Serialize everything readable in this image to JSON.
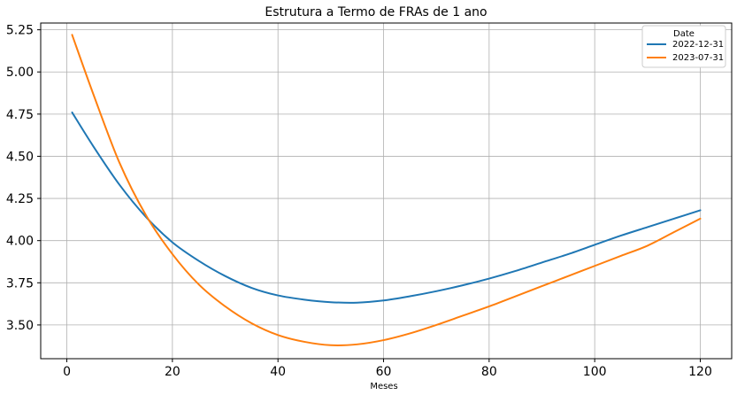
{
  "chart_data": {
    "type": "line",
    "title": "Estrutura a Termo de FRAs de 1 ano",
    "xlabel": "Meses",
    "ylabel": "",
    "xlim": [
      -4.95,
      125.95
    ],
    "ylim": [
      3.3,
      5.29
    ],
    "xticks": [
      0,
      20,
      40,
      60,
      80,
      100,
      120
    ],
    "yticks": [
      3.5,
      3.75,
      4.0,
      4.25,
      4.5,
      4.75,
      5.0,
      5.25
    ],
    "grid": true,
    "legend": {
      "title": "Date",
      "placement": "top-right"
    },
    "series": [
      {
        "name": "2022-12-31",
        "color": "#1f77b4",
        "x": [
          1,
          5,
          10,
          15,
          20,
          25,
          30,
          35,
          40,
          45,
          50,
          55,
          60,
          65,
          70,
          75,
          80,
          85,
          90,
          95,
          100,
          105,
          110,
          115,
          120
        ],
        "y": [
          4.76,
          4.56,
          4.33,
          4.14,
          3.99,
          3.88,
          3.79,
          3.72,
          3.675,
          3.65,
          3.635,
          3.632,
          3.645,
          3.67,
          3.7,
          3.735,
          3.775,
          3.82,
          3.87,
          3.92,
          3.975,
          4.03,
          4.08,
          4.13,
          4.18
        ]
      },
      {
        "name": "2023-07-31",
        "color": "#ff7f0e",
        "x": [
          1,
          5,
          10,
          15,
          20,
          25,
          30,
          35,
          40,
          45,
          50,
          55,
          60,
          65,
          70,
          75,
          80,
          85,
          90,
          95,
          100,
          105,
          110,
          115,
          120
        ],
        "y": [
          5.22,
          4.87,
          4.46,
          4.15,
          3.92,
          3.74,
          3.61,
          3.51,
          3.44,
          3.4,
          3.38,
          3.385,
          3.41,
          3.45,
          3.5,
          3.555,
          3.61,
          3.67,
          3.73,
          3.79,
          3.85,
          3.91,
          3.97,
          4.05,
          4.13
        ]
      }
    ]
  }
}
